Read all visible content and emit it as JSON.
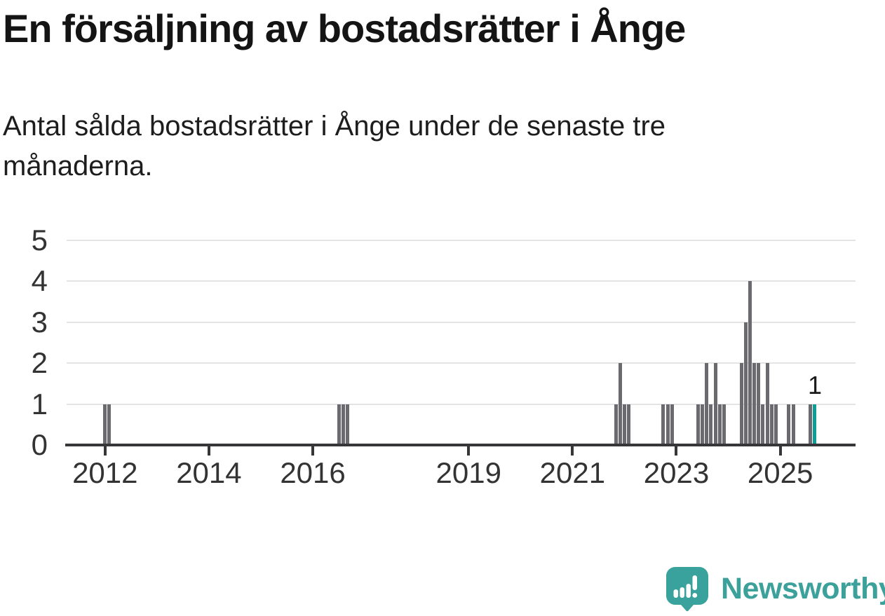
{
  "header": {
    "title": "En försäljning av bostadsrätter i Ånge",
    "subtitle": "Antal sålda bostadsrätter i Ånge under de senaste tre månaderna."
  },
  "chart_data": {
    "type": "bar",
    "title": "En försäljning av bostadsrätter i Ånge",
    "subtitle": "Antal sålda bostadsrätter i Ånge under de senaste tre månaderna.",
    "xlabel": "",
    "ylabel": "",
    "ylim": [
      0,
      5
    ],
    "yticks": [
      0,
      1,
      2,
      3,
      4,
      5
    ],
    "xticks": [
      2012,
      2014,
      2016,
      2019,
      2021,
      2023,
      2025
    ],
    "xlim_years": [
      2011.26,
      2026.45
    ],
    "grid": true,
    "bar_color": "#6a6a6f",
    "highlight_color": "#0f9b96",
    "points": [
      {
        "month": "2012-01",
        "value": 1
      },
      {
        "month": "2012-02",
        "value": 1
      },
      {
        "month": "2016-07",
        "value": 1
      },
      {
        "month": "2016-08",
        "value": 1
      },
      {
        "month": "2016-09",
        "value": 1
      },
      {
        "month": "2021-11",
        "value": 1
      },
      {
        "month": "2021-12",
        "value": 2
      },
      {
        "month": "2022-01",
        "value": 1
      },
      {
        "month": "2022-02",
        "value": 1
      },
      {
        "month": "2022-10",
        "value": 1
      },
      {
        "month": "2022-11",
        "value": 1
      },
      {
        "month": "2022-12",
        "value": 1
      },
      {
        "month": "2023-06",
        "value": 1
      },
      {
        "month": "2023-07",
        "value": 1
      },
      {
        "month": "2023-08",
        "value": 2
      },
      {
        "month": "2023-09",
        "value": 1
      },
      {
        "month": "2023-10",
        "value": 2
      },
      {
        "month": "2023-11",
        "value": 1
      },
      {
        "month": "2023-12",
        "value": 1
      },
      {
        "month": "2024-04",
        "value": 2
      },
      {
        "month": "2024-05",
        "value": 3
      },
      {
        "month": "2024-06",
        "value": 4
      },
      {
        "month": "2024-07",
        "value": 2
      },
      {
        "month": "2024-08",
        "value": 2
      },
      {
        "month": "2024-09",
        "value": 1
      },
      {
        "month": "2024-10",
        "value": 2
      },
      {
        "month": "2024-11",
        "value": 1
      },
      {
        "month": "2024-12",
        "value": 1
      },
      {
        "month": "2025-03",
        "value": 1
      },
      {
        "month": "2025-04",
        "value": 1
      },
      {
        "month": "2025-08",
        "value": 1
      },
      {
        "month": "2025-09",
        "value": 1,
        "highlight": true
      }
    ],
    "annotation": {
      "text": "1",
      "month": "2025-09"
    }
  },
  "footer": {
    "brand": "Newsworthy",
    "brand_color": "#3ca09b",
    "logo_color": "#3aa29c"
  }
}
